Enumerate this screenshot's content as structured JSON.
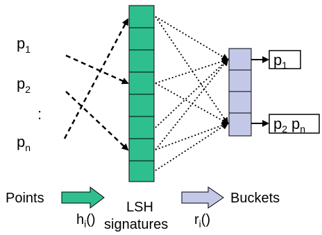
{
  "points": {
    "p1": {
      "base": "p",
      "sub": "1"
    },
    "p2": {
      "base": "p",
      "sub": "2"
    },
    "dots": ":",
    "pn": {
      "base": "p",
      "sub": "n"
    }
  },
  "buckets_out": {
    "top": {
      "base": "p",
      "sub": "1"
    },
    "bottom": {
      "p2_base": "p",
      "p2_sub": "2",
      "pn_base": "p",
      "pn_sub": "n"
    }
  },
  "legend": {
    "points": "Points",
    "hash_fn": {
      "base": "h",
      "sub": "i",
      "suffix": "()"
    },
    "lsh": "LSH",
    "signatures": "signatures",
    "reduce_fn": {
      "base": "r",
      "sub": "i",
      "suffix": "()"
    },
    "buckets": "Buckets"
  },
  "colors": {
    "signature_fill": "#2fbf8f",
    "bucket_fill": "#c4c8e8",
    "legend_points_arrow": "#2fbf8f",
    "legend_buckets_arrow": "#c4c8e8",
    "stroke": "#000000"
  }
}
